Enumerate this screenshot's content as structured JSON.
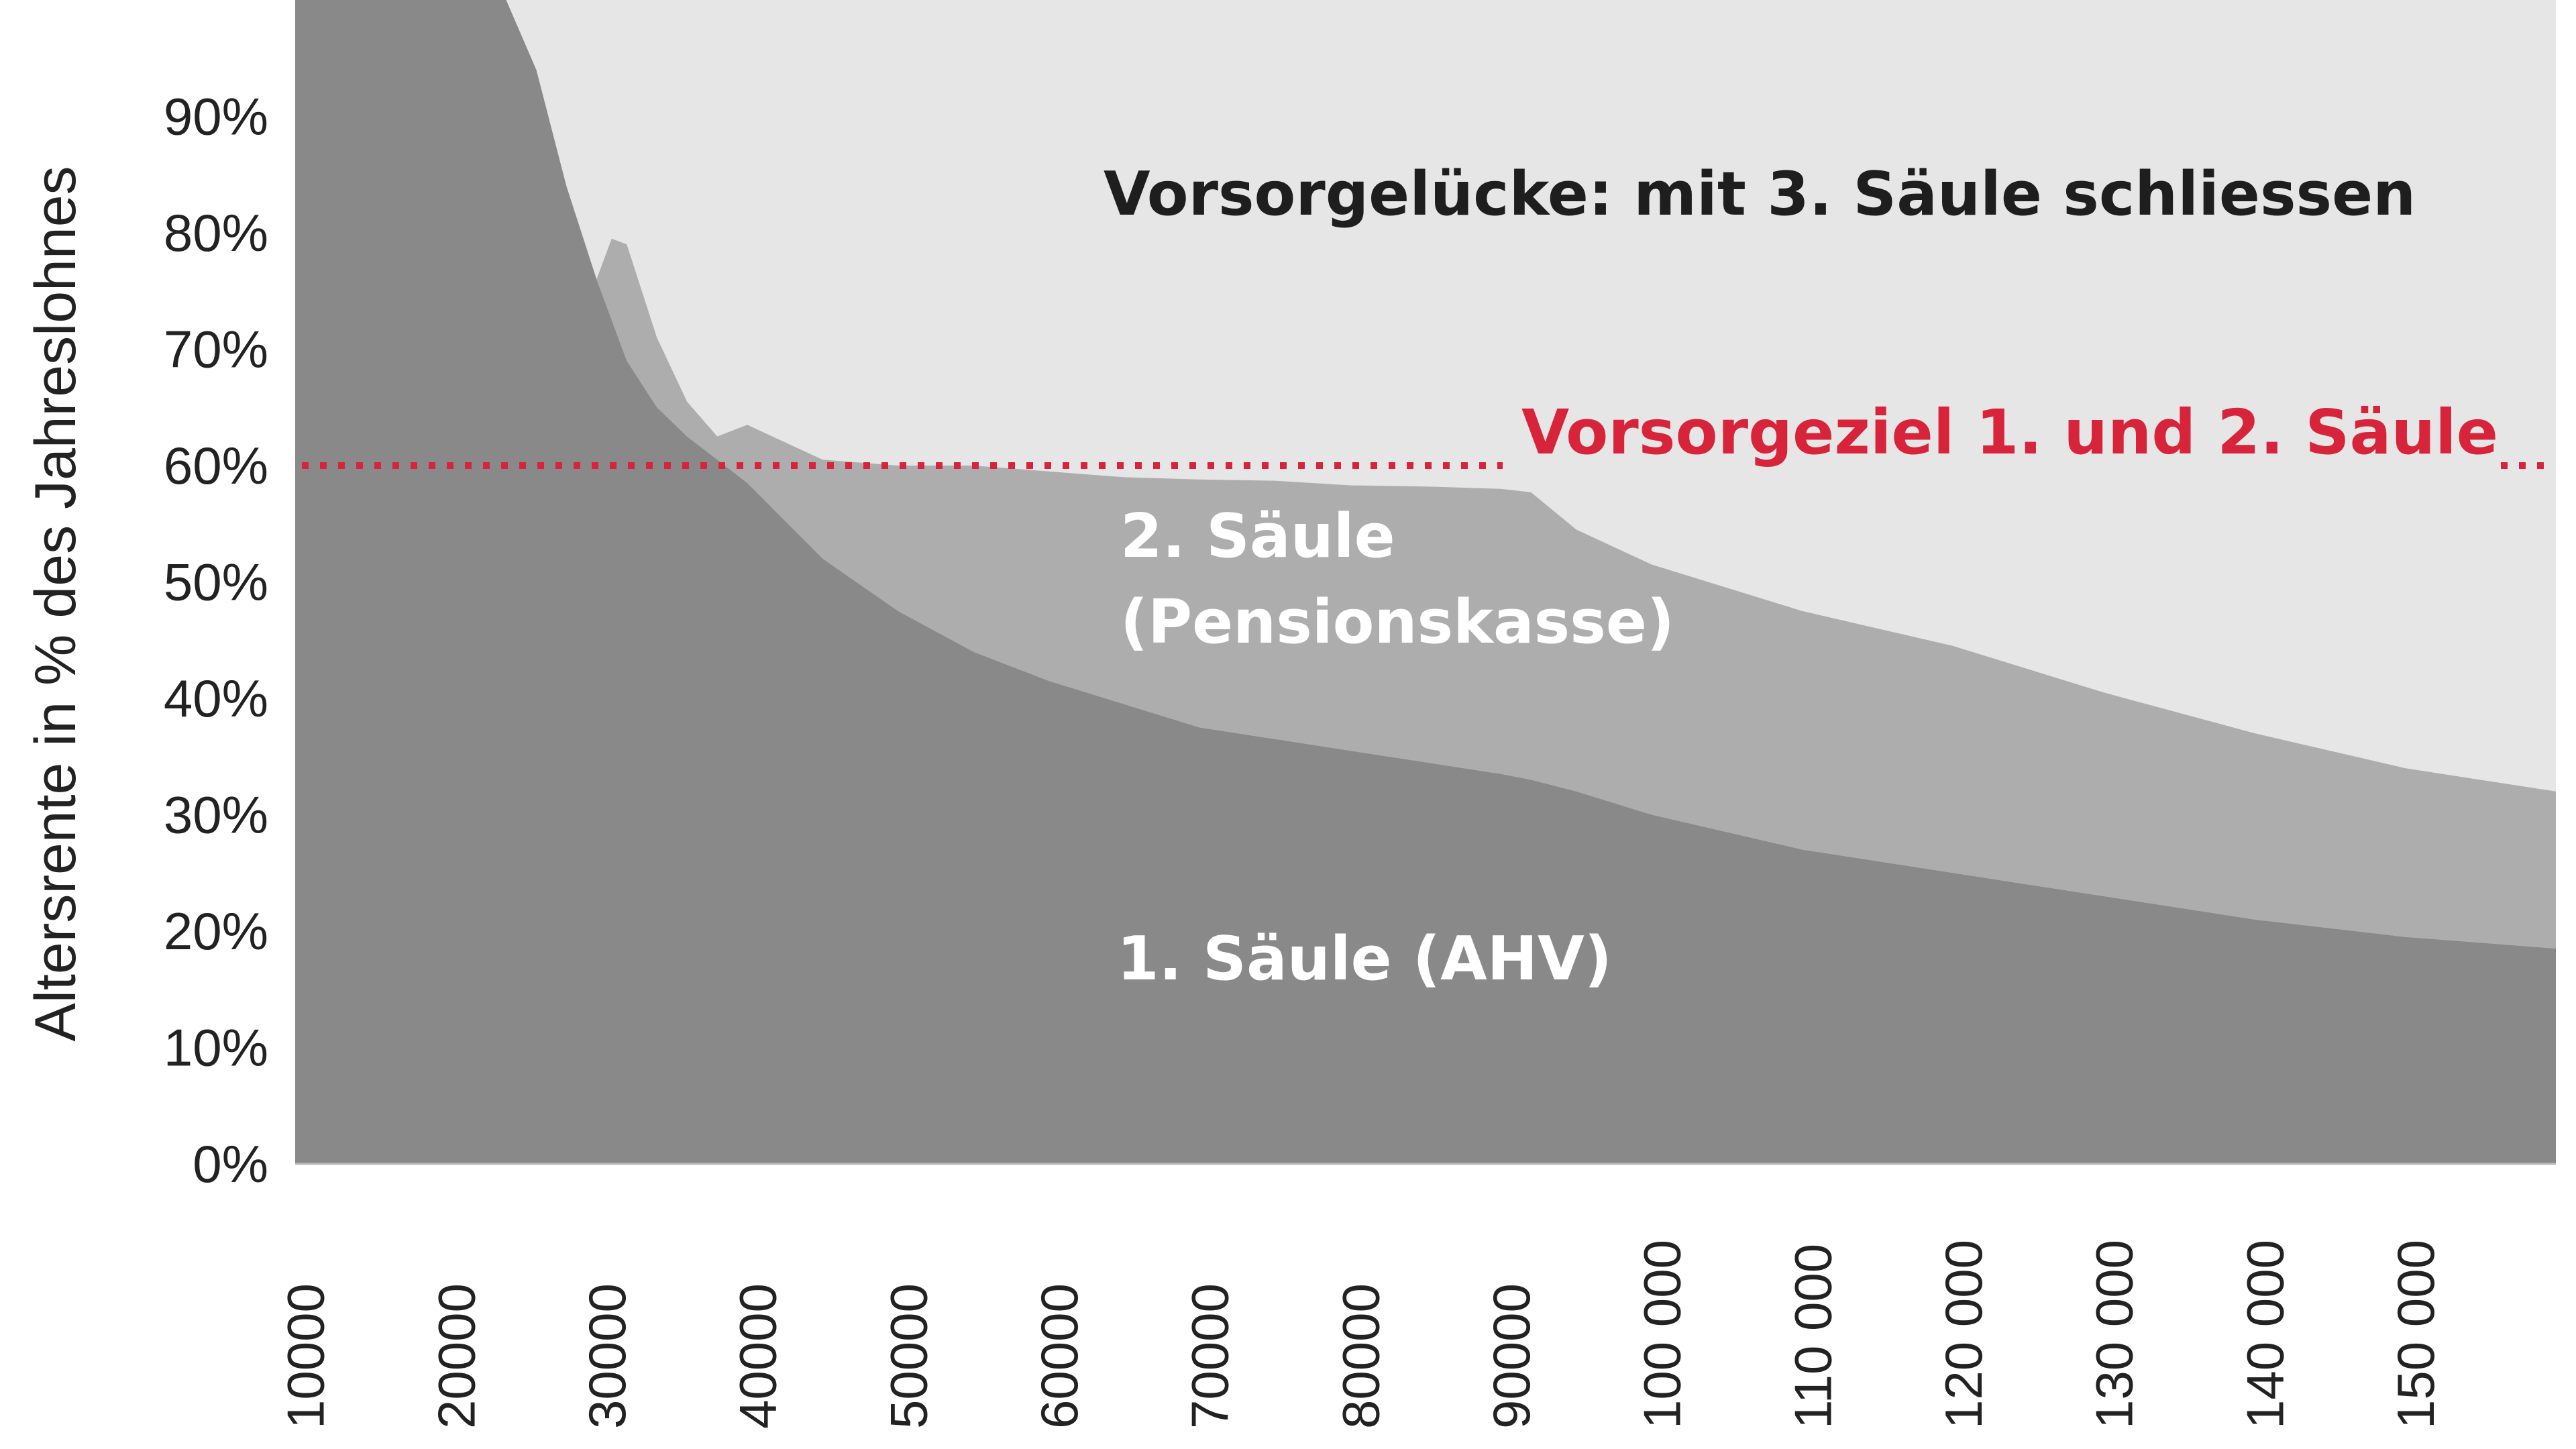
{
  "chart_data": {
    "type": "area",
    "title": "",
    "xlabel": "",
    "ylabel": "Altersrente in % des Jahreslohnes",
    "xlim": [
      0,
      150000
    ],
    "ylim": [
      0,
      100
    ],
    "grid": false,
    "y_ticks": [
      0,
      10,
      20,
      30,
      40,
      50,
      60,
      70,
      80,
      90
    ],
    "y_tick_labels": [
      "0%",
      "10%",
      "20%",
      "30%",
      "40%",
      "50%",
      "60%",
      "70%",
      "80%",
      "90%"
    ],
    "x_ticks": [
      10000,
      20000,
      30000,
      40000,
      50000,
      60000,
      70000,
      80000,
      90000,
      100000,
      110000,
      120000,
      130000,
      140000,
      150000
    ],
    "x_tick_labels": [
      "10000",
      "20000",
      "30000",
      "40000",
      "50000",
      "60000",
      "70000",
      "80000",
      "90000",
      "100 000",
      "110 000",
      "120 000",
      "130 000",
      "140 000",
      "150 000"
    ],
    "x": [
      0,
      10000,
      14000,
      16000,
      18000,
      20000,
      21000,
      22000,
      24000,
      26000,
      28000,
      30000,
      35000,
      40000,
      45000,
      50000,
      55000,
      60000,
      65000,
      70000,
      75000,
      80000,
      82000,
      85000,
      90000,
      100000,
      110000,
      120000,
      130000,
      140000,
      150000
    ],
    "series": [
      {
        "name": "1. Säule (AHV)",
        "color": "#898989",
        "values": [
          100,
          100,
          100,
          94,
          84,
          76,
          72.5,
          69,
          65,
          62.5,
          60.5,
          58.5,
          52,
          47.5,
          44,
          41.5,
          39.5,
          37.5,
          36.5,
          35.5,
          34.5,
          33.5,
          33,
          32,
          30,
          27,
          25,
          23,
          21,
          19.5,
          18.5
        ]
      },
      {
        "name": "2. Säule (Pensionskasse)",
        "color": "#adadad",
        "values": [
          0,
          0,
          0,
          0,
          0,
          0,
          7,
          10,
          6,
          3,
          2,
          5,
          8.5,
          12.5,
          16,
          18,
          19.5,
          21.3,
          22.2,
          22.8,
          23.7,
          24.5,
          24.7,
          22.5,
          21.5,
          20.5,
          19.5,
          17.5,
          16,
          14.5,
          13.5
        ]
      }
    ],
    "gap_area": {
      "label": "Vorsorgelücke: mit 3. Säule schliessen",
      "color": "#e6e6e6"
    },
    "target_line": {
      "label": "Vorsorgeziel 1. und 2. Säule",
      "value": 60,
      "color": "#d8243a",
      "style": "dotted"
    },
    "area_labels": {
      "first": "1. Säule (AHV)",
      "second_line1": "2. Säule",
      "second_line2": "(Pensionskasse)"
    }
  }
}
